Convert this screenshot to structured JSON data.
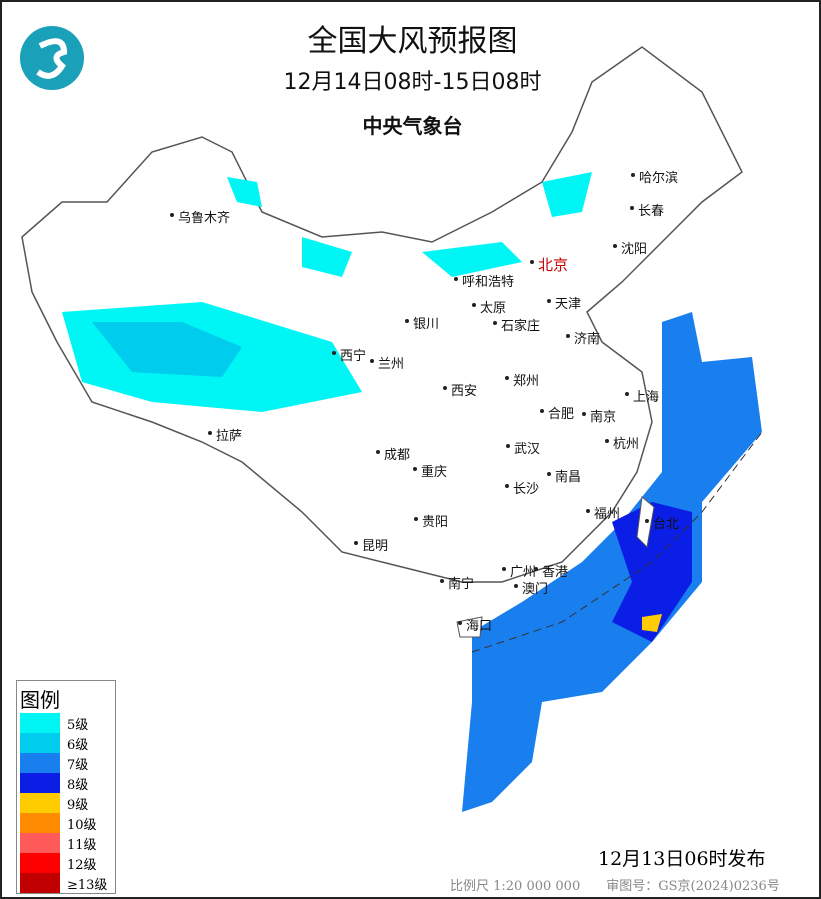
{
  "title": "全国大风预报图",
  "period": "12月14日08时-15日08时",
  "agency": "中央气象台",
  "logo_text": "",
  "legend": {
    "title": "图例",
    "items": [
      {
        "label": "5级",
        "color": "#00f5f5"
      },
      {
        "label": "6级",
        "color": "#00ccee"
      },
      {
        "label": "7级",
        "color": "#1a7fee"
      },
      {
        "label": "8级",
        "color": "#0a1ee6"
      },
      {
        "label": "9级",
        "color": "#ffcc00"
      },
      {
        "label": "10级",
        "color": "#ff8c00"
      },
      {
        "label": "11级",
        "color": "#ff5a5a"
      },
      {
        "label": "12级",
        "color": "#ff0000"
      },
      {
        "label": "≥13级",
        "color": "#c00000"
      }
    ]
  },
  "cities": [
    "哈尔滨",
    "长春",
    "沈阳",
    "乌鲁木齐",
    "北京",
    "呼和浩特",
    "天津",
    "太原",
    "石家庄",
    "银川",
    "济南",
    "西宁",
    "兰州",
    "郑州",
    "西安",
    "合肥",
    "南京",
    "上海",
    "拉萨",
    "成都",
    "武汉",
    "杭州",
    "重庆",
    "南昌",
    "长沙",
    "贵阳",
    "福州",
    "台北",
    "昆明",
    "广州",
    "香港",
    "澳门",
    "南宁",
    "海口"
  ],
  "issued": "12月13日06时发布",
  "scale": "比例尺 1:20 000 000",
  "map_number": "审图号：GS京(2024)0236号"
}
